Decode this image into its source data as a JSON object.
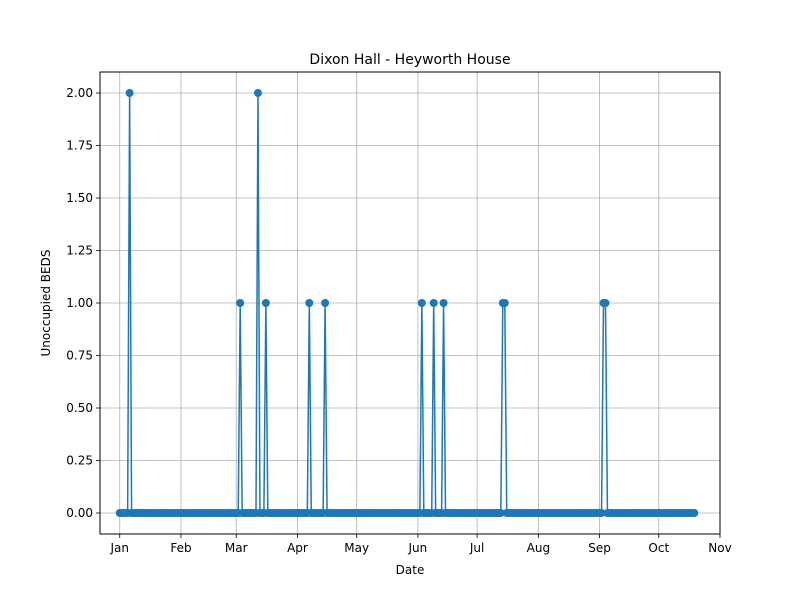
{
  "chart_data": {
    "type": "line",
    "title": "Dixon Hall - Heyworth House",
    "xlabel": "Date",
    "ylabel": "Unoccupied BEDS",
    "x_range": [
      "2024-12-22",
      "2025-11-01"
    ],
    "ylim": [
      -0.1,
      2.1
    ],
    "grid": true,
    "series_color": "#1f77b4",
    "x_ticks": [
      {
        "date": "2025-01-01",
        "label": "Jan"
      },
      {
        "date": "2025-02-01",
        "label": "Feb"
      },
      {
        "date": "2025-03-01",
        "label": "Mar"
      },
      {
        "date": "2025-04-01",
        "label": "Apr"
      },
      {
        "date": "2025-05-01",
        "label": "May"
      },
      {
        "date": "2025-06-01",
        "label": "Jun"
      },
      {
        "date": "2025-07-01",
        "label": "Jul"
      },
      {
        "date": "2025-08-01",
        "label": "Aug"
      },
      {
        "date": "2025-09-01",
        "label": "Sep"
      },
      {
        "date": "2025-10-01",
        "label": "Oct"
      },
      {
        "date": "2025-11-01",
        "label": "Nov"
      }
    ],
    "y_ticks": [
      {
        "value": 0.0,
        "label": "0.00"
      },
      {
        "value": 0.25,
        "label": "0.25"
      },
      {
        "value": 0.5,
        "label": "0.50"
      },
      {
        "value": 0.75,
        "label": "0.75"
      },
      {
        "value": 1.0,
        "label": "1.00"
      },
      {
        "value": 1.25,
        "label": "1.25"
      },
      {
        "value": 1.5,
        "label": "1.50"
      },
      {
        "value": 1.75,
        "label": "1.75"
      },
      {
        "value": 2.0,
        "label": "2.00"
      }
    ],
    "date_range": {
      "start": "2025-01-01",
      "end": "2025-10-19",
      "default": 0
    },
    "nonzero_points": [
      {
        "date": "2025-01-06",
        "y": 2
      },
      {
        "date": "2025-03-03",
        "y": 1
      },
      {
        "date": "2025-03-12",
        "y": 2
      },
      {
        "date": "2025-03-16",
        "y": 1
      },
      {
        "date": "2025-04-07",
        "y": 1
      },
      {
        "date": "2025-04-15",
        "y": 1
      },
      {
        "date": "2025-06-03",
        "y": 1
      },
      {
        "date": "2025-06-09",
        "y": 1
      },
      {
        "date": "2025-06-14",
        "y": 1
      },
      {
        "date": "2025-07-14",
        "y": 1
      },
      {
        "date": "2025-07-15",
        "y": 1
      },
      {
        "date": "2025-09-03",
        "y": 1
      },
      {
        "date": "2025-09-04",
        "y": 1
      }
    ]
  }
}
